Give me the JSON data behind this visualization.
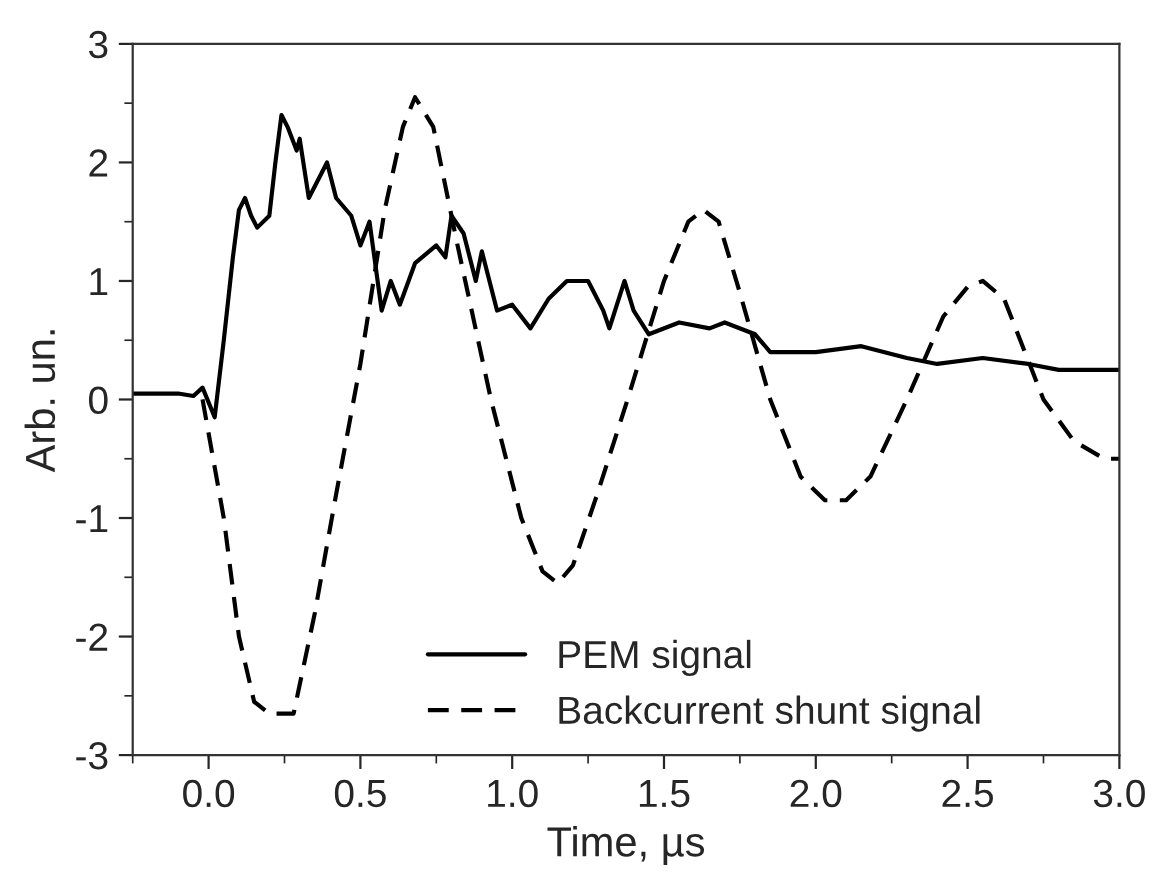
{
  "chart_data": {
    "type": "line",
    "xlabel": "Time, µs",
    "ylabel": "Arb. un.",
    "xlim": [
      -0.25,
      3.0
    ],
    "xticks": [
      {
        "value": 0,
        "label": "0.0"
      },
      {
        "value": 0.5,
        "label": "0.5"
      },
      {
        "value": 1,
        "label": "1.0"
      },
      {
        "value": 1.5,
        "label": "1.5"
      },
      {
        "value": 2,
        "label": "2.0"
      },
      {
        "value": 2.5,
        "label": "2.5"
      },
      {
        "value": 3,
        "label": "3.0"
      }
    ],
    "ylim": [
      -3,
      3
    ],
    "yticks": [
      -3,
      -2,
      -1,
      0,
      1,
      2,
      3
    ],
    "legend": "bottom",
    "grid": false,
    "series": [
      {
        "name": "PEM signal",
        "color": "#000000",
        "line_style": "solid",
        "x": [
          -0.25,
          -0.2,
          -0.15,
          -0.1,
          -0.05,
          -0.02,
          0.02,
          0.05,
          0.08,
          0.1,
          0.12,
          0.14,
          0.16,
          0.2,
          0.22,
          0.24,
          0.26,
          0.29,
          0.3,
          0.33,
          0.36,
          0.39,
          0.42,
          0.47,
          0.5,
          0.53,
          0.57,
          0.6,
          0.63,
          0.68,
          0.75,
          0.78,
          0.8,
          0.84,
          0.88,
          0.9,
          0.95,
          1.0,
          1.06,
          1.12,
          1.18,
          1.25,
          1.3,
          1.32,
          1.37,
          1.4,
          1.45,
          1.55,
          1.65,
          1.7,
          1.8,
          1.85,
          2.0,
          2.15,
          2.3,
          2.4,
          2.55,
          2.7,
          2.8,
          3.0
        ],
        "values": [
          0.05,
          0.05,
          0.05,
          0.05,
          0.03,
          0.1,
          -0.15,
          0.5,
          1.2,
          1.6,
          1.7,
          1.55,
          1.45,
          1.55,
          2.0,
          2.4,
          2.3,
          2.1,
          2.2,
          1.7,
          1.85,
          2.0,
          1.7,
          1.55,
          1.3,
          1.5,
          0.75,
          1.0,
          0.8,
          1.15,
          1.3,
          1.2,
          1.55,
          1.4,
          1.0,
          1.25,
          0.75,
          0.8,
          0.6,
          0.85,
          1.0,
          1.0,
          0.75,
          0.6,
          1.0,
          0.75,
          0.55,
          0.65,
          0.6,
          0.65,
          0.55,
          0.4,
          0.4,
          0.45,
          0.35,
          0.3,
          0.35,
          0.3,
          0.25,
          0.25
        ]
      },
      {
        "name": "Backcurrent shunt signal",
        "color": "#000000",
        "line_style": "dashed",
        "x": [
          -0.02,
          0.05,
          0.1,
          0.15,
          0.2,
          0.28,
          0.35,
          0.42,
          0.5,
          0.58,
          0.64,
          0.68,
          0.74,
          0.82,
          0.93,
          1.03,
          1.1,
          1.15,
          1.2,
          1.28,
          1.38,
          1.5,
          1.58,
          1.63,
          1.68,
          1.75,
          1.85,
          1.95,
          2.03,
          2.1,
          2.18,
          2.3,
          2.42,
          2.5,
          2.55,
          2.62,
          2.75,
          2.85,
          2.95,
          3.0
        ],
        "values": [
          0.0,
          -1.0,
          -2.0,
          -2.55,
          -2.65,
          -2.65,
          -1.8,
          -0.8,
          0.3,
          1.6,
          2.3,
          2.55,
          2.3,
          1.3,
          0.0,
          -1.0,
          -1.45,
          -1.55,
          -1.4,
          -0.8,
          0.0,
          1.0,
          1.5,
          1.6,
          1.5,
          0.9,
          0.0,
          -0.65,
          -0.85,
          -0.85,
          -0.65,
          0.0,
          0.7,
          0.95,
          1.0,
          0.85,
          0.0,
          -0.35,
          -0.5,
          -0.5
        ]
      }
    ]
  }
}
